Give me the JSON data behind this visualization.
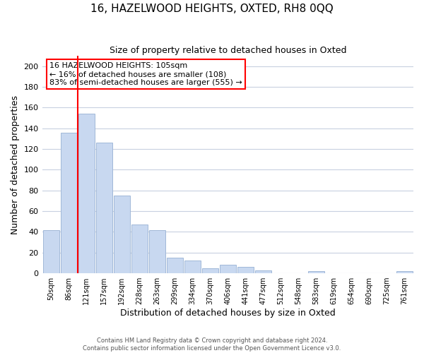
{
  "title": "16, HAZELWOOD HEIGHTS, OXTED, RH8 0QQ",
  "subtitle": "Size of property relative to detached houses in Oxted",
  "xlabel": "Distribution of detached houses by size in Oxted",
  "ylabel": "Number of detached properties",
  "bar_color": "#c8d8f0",
  "bar_edge_color": "#a0b8d8",
  "vline_color": "red",
  "categories": [
    "50sqm",
    "86sqm",
    "121sqm",
    "157sqm",
    "192sqm",
    "228sqm",
    "263sqm",
    "299sqm",
    "334sqm",
    "370sqm",
    "406sqm",
    "441sqm",
    "477sqm",
    "512sqm",
    "548sqm",
    "583sqm",
    "619sqm",
    "654sqm",
    "690sqm",
    "725sqm",
    "761sqm"
  ],
  "values": [
    42,
    136,
    154,
    126,
    75,
    47,
    42,
    15,
    12,
    5,
    8,
    6,
    3,
    0,
    0,
    2,
    0,
    0,
    0,
    0,
    2
  ],
  "ylim": [
    0,
    210
  ],
  "yticks": [
    0,
    20,
    40,
    60,
    80,
    100,
    120,
    140,
    160,
    180,
    200
  ],
  "annotation_title": "16 HAZELWOOD HEIGHTS: 105sqm",
  "annotation_line1": "← 16% of detached houses are smaller (108)",
  "annotation_line2": "83% of semi-detached houses are larger (555) →",
  "footer_line1": "Contains HM Land Registry data © Crown copyright and database right 2024.",
  "footer_line2": "Contains public sector information licensed under the Open Government Licence v3.0.",
  "background_color": "#ffffff",
  "grid_color": "#c8d0e0"
}
